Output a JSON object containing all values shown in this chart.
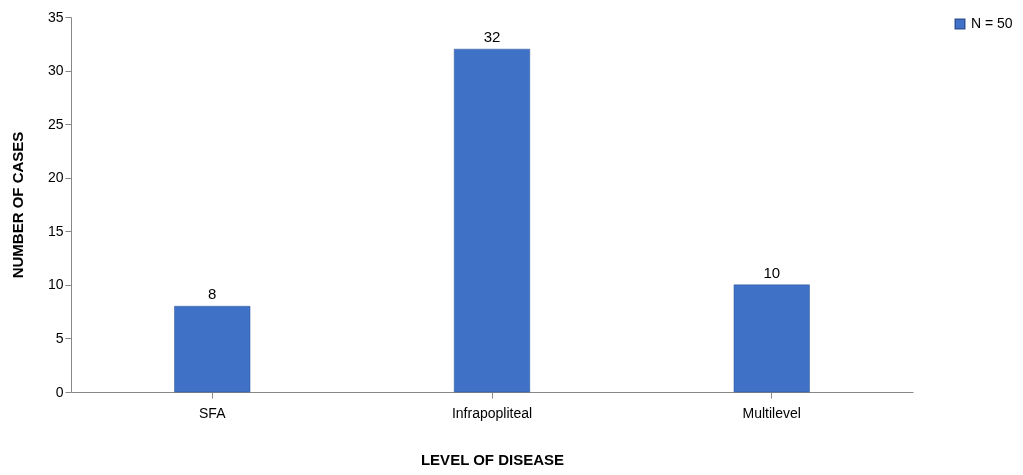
{
  "chart_data": {
    "type": "bar",
    "xlabel": "LEVEL OF DISEASE",
    "ylabel": "NUMBER OF CASES",
    "categories": [
      "SFA",
      "Infrapopliteal",
      "Multilevel"
    ],
    "series": [
      {
        "name": "N = 50",
        "color": "#3f72c6",
        "values": [
          8,
          32,
          10
        ]
      }
    ],
    "ylim": [
      0,
      35
    ],
    "yticks": [
      0,
      5,
      10,
      15,
      20,
      25,
      30,
      35
    ],
    "grid": false,
    "legend": "right",
    "data_labels": true
  }
}
